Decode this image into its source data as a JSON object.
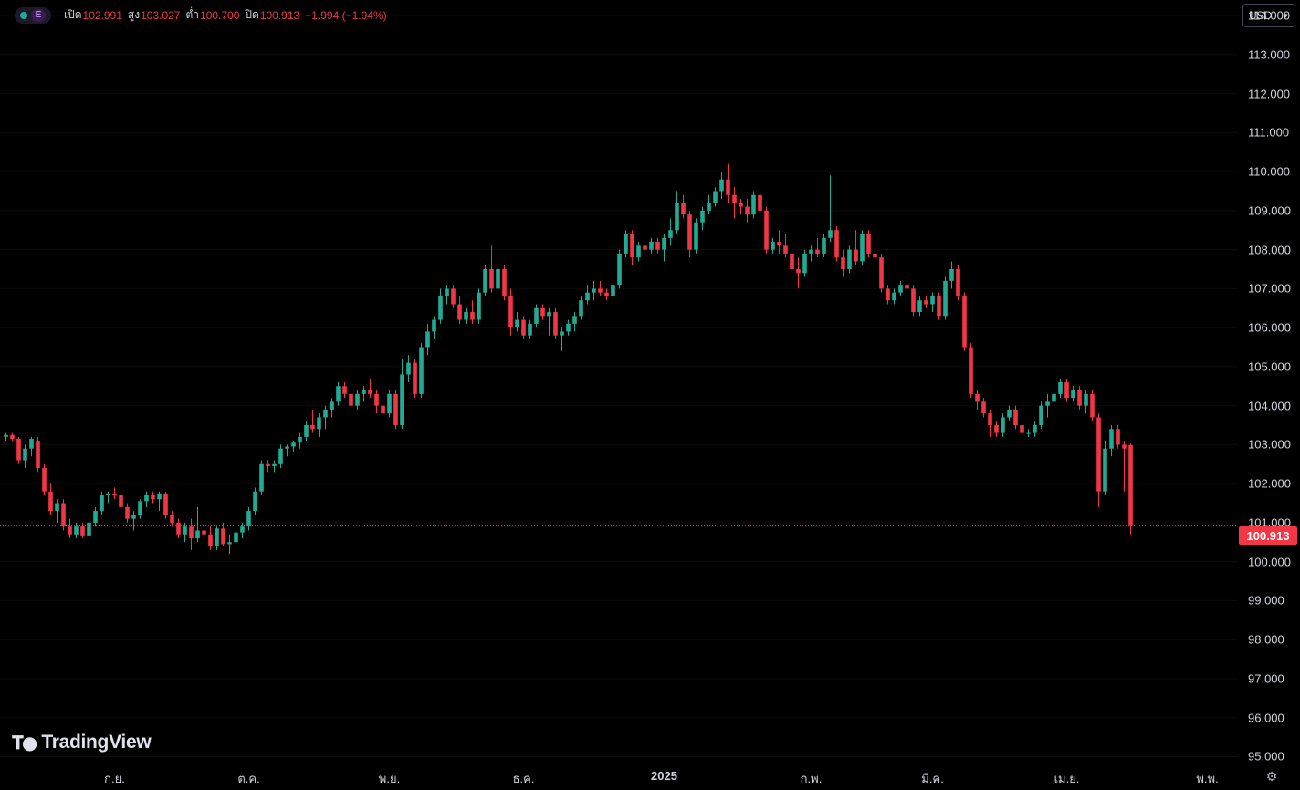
{
  "legend": {
    "open_label": "เปิด",
    "open_value": "102.991",
    "high_label": "สูง",
    "high_value": "103.027",
    "low_label": "ต่ำ",
    "low_value": "100.700",
    "close_label": "ปิด",
    "close_value": "100.913",
    "change": "−1.994 (−1.94%)",
    "badge": "E"
  },
  "currency": "USD",
  "last_price_tag": "100.913",
  "logo": {
    "text": "TradingView"
  },
  "colors": {
    "up": "#22ab94",
    "down": "#f23645",
    "background": "#000000",
    "last_price_line": "#f23645"
  },
  "icons": {
    "settings": "gear-icon",
    "status": "market-open-dot-icon",
    "currency_dropdown": "chevron-down-icon"
  },
  "chart_data": {
    "type": "candlestick",
    "ylim": [
      94.8,
      114.4
    ],
    "price_ticks": [
      "114.000",
      "113.000",
      "112.000",
      "111.000",
      "110.000",
      "109.000",
      "108.000",
      "107.000",
      "106.000",
      "105.000",
      "104.000",
      "103.000",
      "102.000",
      "101.000",
      "100.000",
      "99.000",
      "98.000",
      "97.000",
      "96.000",
      "95.000"
    ],
    "time_ticks": [
      {
        "label": "ก.ย.",
        "index": 17
      },
      {
        "label": "ต.ค.",
        "index": 38
      },
      {
        "label": "พ.ย.",
        "index": 60
      },
      {
        "label": "ธ.ค.",
        "index": 81
      },
      {
        "label": "2025",
        "index": 103,
        "bold": true
      },
      {
        "label": "ก.พ.",
        "index": 126
      },
      {
        "label": "มี.ค.",
        "index": 145
      },
      {
        "label": "เม.ย.",
        "index": 166
      },
      {
        "label": "พ.พ.",
        "index": 188
      }
    ],
    "last_close": 100.913,
    "candles": [
      [
        103.2,
        103.3,
        103.1,
        103.25
      ],
      [
        103.25,
        103.3,
        103.1,
        103.15
      ],
      [
        103.15,
        103.2,
        102.5,
        102.6
      ],
      [
        102.6,
        103.0,
        102.4,
        102.9
      ],
      [
        102.9,
        103.2,
        102.7,
        103.15
      ],
      [
        103.1,
        103.2,
        102.3,
        102.4
      ],
      [
        102.4,
        102.5,
        101.7,
        101.8
      ],
      [
        101.8,
        102.0,
        101.2,
        101.3
      ],
      [
        101.3,
        101.6,
        101.0,
        101.5
      ],
      [
        101.5,
        101.6,
        100.8,
        100.9
      ],
      [
        100.9,
        101.1,
        100.6,
        100.7
      ],
      [
        100.7,
        101.0,
        100.6,
        100.9
      ],
      [
        100.9,
        101.0,
        100.6,
        100.65
      ],
      [
        100.65,
        101.1,
        100.6,
        101.0
      ],
      [
        101.0,
        101.4,
        100.9,
        101.3
      ],
      [
        101.3,
        101.8,
        101.2,
        101.7
      ],
      [
        101.7,
        101.8,
        101.5,
        101.75
      ],
      [
        101.75,
        101.9,
        101.6,
        101.7
      ],
      [
        101.7,
        101.8,
        101.3,
        101.4
      ],
      [
        101.4,
        101.5,
        101.0,
        101.1
      ],
      [
        101.1,
        101.3,
        100.8,
        101.2
      ],
      [
        101.2,
        101.6,
        101.1,
        101.55
      ],
      [
        101.55,
        101.8,
        101.4,
        101.7
      ],
      [
        101.7,
        101.8,
        101.5,
        101.6
      ],
      [
        101.6,
        101.8,
        101.3,
        101.75
      ],
      [
        101.75,
        101.8,
        101.1,
        101.2
      ],
      [
        101.2,
        101.3,
        100.9,
        101.0
      ],
      [
        101.0,
        101.1,
        100.6,
        100.7
      ],
      [
        100.7,
        101.0,
        100.5,
        100.9
      ],
      [
        100.9,
        101.1,
        100.3,
        100.6
      ],
      [
        100.6,
        101.4,
        100.5,
        100.8
      ],
      [
        100.8,
        100.9,
        100.5,
        100.7
      ],
      [
        100.7,
        100.9,
        100.3,
        100.4
      ],
      [
        100.4,
        100.9,
        100.3,
        100.85
      ],
      [
        100.85,
        101.0,
        100.4,
        100.45
      ],
      [
        100.45,
        100.7,
        100.2,
        100.5
      ],
      [
        100.5,
        100.8,
        100.3,
        100.75
      ],
      [
        100.75,
        101.0,
        100.6,
        100.9
      ],
      [
        100.9,
        101.4,
        100.8,
        101.3
      ],
      [
        101.3,
        101.9,
        101.2,
        101.8
      ],
      [
        101.8,
        102.6,
        101.7,
        102.5
      ],
      [
        102.5,
        102.6,
        102.3,
        102.45
      ],
      [
        102.45,
        102.6,
        102.3,
        102.5
      ],
      [
        102.5,
        103.0,
        102.4,
        102.9
      ],
      [
        102.9,
        103.0,
        102.7,
        102.95
      ],
      [
        102.95,
        103.1,
        102.8,
        103.05
      ],
      [
        103.05,
        103.3,
        102.9,
        103.2
      ],
      [
        103.2,
        103.6,
        103.1,
        103.5
      ],
      [
        103.5,
        103.9,
        103.3,
        103.4
      ],
      [
        103.4,
        103.8,
        103.2,
        103.7
      ],
      [
        103.7,
        104.0,
        103.4,
        103.9
      ],
      [
        103.9,
        104.2,
        103.7,
        104.1
      ],
      [
        104.1,
        104.6,
        104.0,
        104.5
      ],
      [
        104.5,
        104.6,
        104.2,
        104.3
      ],
      [
        104.3,
        104.4,
        103.9,
        104.0
      ],
      [
        104.0,
        104.4,
        103.9,
        104.3
      ],
      [
        104.3,
        104.5,
        104.1,
        104.4
      ],
      [
        104.4,
        104.7,
        104.2,
        104.3
      ],
      [
        104.3,
        104.4,
        103.8,
        104.0
      ],
      [
        104.0,
        104.1,
        103.7,
        103.8
      ],
      [
        103.8,
        104.4,
        103.7,
        104.3
      ],
      [
        104.3,
        104.4,
        103.4,
        103.5
      ],
      [
        103.5,
        105.2,
        103.4,
        104.8
      ],
      [
        104.8,
        105.3,
        104.6,
        105.1
      ],
      [
        105.1,
        105.2,
        104.2,
        104.3
      ],
      [
        104.3,
        105.6,
        104.2,
        105.5
      ],
      [
        105.5,
        106.1,
        105.3,
        105.9
      ],
      [
        105.9,
        106.3,
        105.7,
        106.2
      ],
      [
        106.2,
        107.0,
        106.1,
        106.8
      ],
      [
        106.8,
        107.1,
        106.6,
        107.0
      ],
      [
        107.0,
        107.1,
        106.5,
        106.6
      ],
      [
        106.6,
        106.8,
        106.1,
        106.2
      ],
      [
        106.2,
        106.5,
        106.1,
        106.4
      ],
      [
        106.4,
        106.7,
        106.1,
        106.2
      ],
      [
        106.2,
        107.0,
        106.1,
        106.9
      ],
      [
        106.9,
        107.6,
        106.8,
        107.5
      ],
      [
        107.5,
        108.1,
        106.9,
        107.0
      ],
      [
        107.0,
        107.6,
        106.6,
        107.5
      ],
      [
        107.5,
        107.6,
        106.7,
        106.8
      ],
      [
        106.8,
        107.0,
        105.8,
        106.0
      ],
      [
        106.0,
        106.4,
        105.9,
        106.2
      ],
      [
        106.2,
        106.3,
        105.7,
        105.8
      ],
      [
        105.8,
        106.2,
        105.7,
        106.1
      ],
      [
        106.1,
        106.6,
        106.0,
        106.5
      ],
      [
        106.5,
        106.6,
        106.2,
        106.3
      ],
      [
        106.3,
        106.5,
        105.8,
        106.4
      ],
      [
        106.4,
        106.5,
        105.7,
        105.8
      ],
      [
        105.8,
        106.0,
        105.4,
        105.9
      ],
      [
        105.9,
        106.2,
        105.8,
        106.1
      ],
      [
        106.1,
        106.4,
        105.9,
        106.3
      ],
      [
        106.3,
        106.8,
        106.2,
        106.7
      ],
      [
        106.7,
        107.1,
        106.6,
        106.9
      ],
      [
        106.9,
        107.2,
        106.7,
        107.0
      ],
      [
        107.0,
        107.2,
        106.8,
        106.9
      ],
      [
        106.9,
        107.0,
        106.7,
        106.8
      ],
      [
        106.8,
        107.2,
        106.7,
        107.1
      ],
      [
        107.1,
        108.0,
        107.0,
        107.9
      ],
      [
        107.9,
        108.5,
        107.8,
        108.4
      ],
      [
        108.4,
        108.5,
        107.6,
        107.8
      ],
      [
        107.8,
        108.2,
        107.7,
        108.1
      ],
      [
        108.1,
        108.2,
        107.9,
        108.0
      ],
      [
        108.0,
        108.3,
        107.9,
        108.2
      ],
      [
        108.2,
        108.3,
        107.9,
        108.0
      ],
      [
        108.0,
        108.4,
        107.7,
        108.3
      ],
      [
        108.3,
        108.8,
        108.1,
        108.5
      ],
      [
        108.5,
        109.5,
        108.4,
        109.2
      ],
      [
        109.2,
        109.4,
        108.8,
        108.9
      ],
      [
        108.9,
        109.0,
        107.8,
        108.0
      ],
      [
        108.0,
        108.8,
        107.9,
        108.7
      ],
      [
        108.7,
        109.1,
        108.5,
        109.0
      ],
      [
        109.0,
        109.4,
        108.9,
        109.2
      ],
      [
        109.2,
        109.6,
        109.1,
        109.5
      ],
      [
        109.5,
        110.0,
        109.3,
        109.8
      ],
      [
        109.8,
        110.2,
        109.2,
        109.4
      ],
      [
        109.4,
        109.6,
        108.8,
        109.2
      ],
      [
        109.2,
        109.3,
        108.9,
        109.1
      ],
      [
        109.1,
        109.3,
        108.7,
        108.9
      ],
      [
        108.9,
        109.5,
        108.8,
        109.4
      ],
      [
        109.4,
        109.5,
        108.9,
        109.0
      ],
      [
        109.0,
        109.1,
        107.9,
        108.0
      ],
      [
        108.0,
        108.3,
        107.9,
        108.2
      ],
      [
        108.2,
        108.5,
        107.9,
        108.1
      ],
      [
        108.1,
        108.4,
        107.8,
        107.9
      ],
      [
        107.9,
        108.2,
        107.4,
        107.5
      ],
      [
        107.5,
        107.8,
        107.0,
        107.4
      ],
      [
        107.4,
        108.0,
        107.3,
        107.9
      ],
      [
        107.9,
        108.1,
        107.7,
        108.0
      ],
      [
        108.0,
        108.3,
        107.8,
        107.9
      ],
      [
        107.9,
        108.4,
        107.8,
        108.3
      ],
      [
        108.3,
        109.9,
        108.2,
        108.5
      ],
      [
        108.5,
        108.6,
        107.7,
        107.8
      ],
      [
        107.8,
        108.0,
        107.3,
        107.5
      ],
      [
        107.5,
        108.1,
        107.4,
        108.0
      ],
      [
        108.0,
        108.5,
        107.6,
        107.7
      ],
      [
        107.7,
        108.5,
        107.6,
        108.4
      ],
      [
        108.4,
        108.5,
        107.8,
        107.9
      ],
      [
        107.9,
        108.0,
        107.7,
        107.8
      ],
      [
        107.8,
        107.9,
        106.9,
        107.0
      ],
      [
        107.0,
        107.1,
        106.6,
        106.7
      ],
      [
        106.7,
        107.0,
        106.6,
        106.9
      ],
      [
        106.9,
        107.2,
        106.8,
        107.1
      ],
      [
        107.1,
        107.2,
        106.8,
        107.0
      ],
      [
        107.0,
        107.1,
        106.3,
        106.4
      ],
      [
        106.4,
        106.8,
        106.3,
        106.7
      ],
      [
        106.7,
        106.8,
        106.5,
        106.6
      ],
      [
        106.6,
        106.9,
        106.4,
        106.8
      ],
      [
        106.8,
        106.9,
        106.2,
        106.3
      ],
      [
        106.3,
        107.3,
        106.2,
        107.2
      ],
      [
        107.2,
        107.7,
        107.0,
        107.5
      ],
      [
        107.5,
        107.6,
        106.7,
        106.8
      ],
      [
        106.8,
        106.9,
        105.4,
        105.5
      ],
      [
        105.5,
        105.6,
        104.2,
        104.3
      ],
      [
        104.3,
        104.4,
        103.9,
        104.1
      ],
      [
        104.1,
        104.2,
        103.7,
        103.8
      ],
      [
        103.8,
        103.9,
        103.2,
        103.5
      ],
      [
        103.5,
        103.6,
        103.2,
        103.3
      ],
      [
        103.3,
        103.8,
        103.2,
        103.7
      ],
      [
        103.7,
        104.0,
        103.6,
        103.9
      ],
      [
        103.9,
        104.0,
        103.4,
        103.5
      ],
      [
        103.5,
        103.6,
        103.2,
        103.3
      ],
      [
        103.3,
        103.4,
        103.2,
        103.3
      ],
      [
        103.3,
        103.6,
        103.2,
        103.5
      ],
      [
        103.5,
        104.1,
        103.4,
        104.0
      ],
      [
        104.0,
        104.3,
        103.7,
        104.1
      ],
      [
        104.1,
        104.4,
        103.9,
        104.3
      ],
      [
        104.3,
        104.7,
        104.2,
        104.6
      ],
      [
        104.6,
        104.7,
        104.1,
        104.2
      ],
      [
        104.2,
        104.5,
        104.1,
        104.4
      ],
      [
        104.4,
        104.5,
        103.9,
        104.0
      ],
      [
        104.0,
        104.4,
        103.8,
        104.3
      ],
      [
        104.3,
        104.4,
        103.6,
        103.7
      ],
      [
        103.7,
        103.8,
        101.4,
        101.8
      ],
      [
        101.8,
        103.1,
        101.7,
        102.9
      ],
      [
        102.9,
        103.5,
        102.7,
        103.4
      ],
      [
        103.4,
        103.5,
        102.9,
        103.0
      ],
      [
        103.0,
        103.1,
        101.8,
        102.9
      ],
      [
        102.991,
        103.027,
        100.7,
        100.913
      ]
    ]
  }
}
